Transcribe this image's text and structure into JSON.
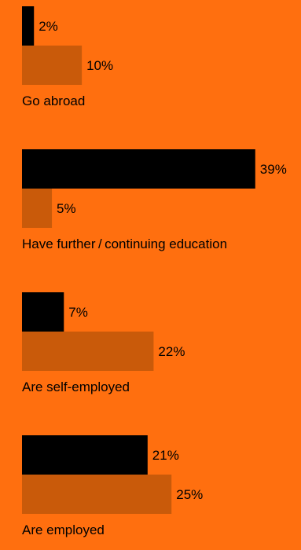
{
  "chart_data": {
    "type": "bar",
    "orientation": "horizontal",
    "categories": [
      "Go abroad",
      "Have further / continuing education",
      "Are self-employed",
      "Are employed"
    ],
    "series": [
      {
        "values": [
          2,
          39,
          7,
          21
        ],
        "value_labels": [
          "2%",
          "39%",
          "7%",
          "21%"
        ]
      },
      {
        "values": [
          10,
          5,
          22,
          25
        ],
        "value_labels": [
          "10%",
          "5%",
          "22%",
          "25%"
        ]
      }
    ],
    "unit": "%",
    "grid": false,
    "legend": "none"
  },
  "colors": {
    "background": "#FF6F0F",
    "series": [
      "#000000",
      "#C95A0A"
    ],
    "text": "#000000"
  }
}
